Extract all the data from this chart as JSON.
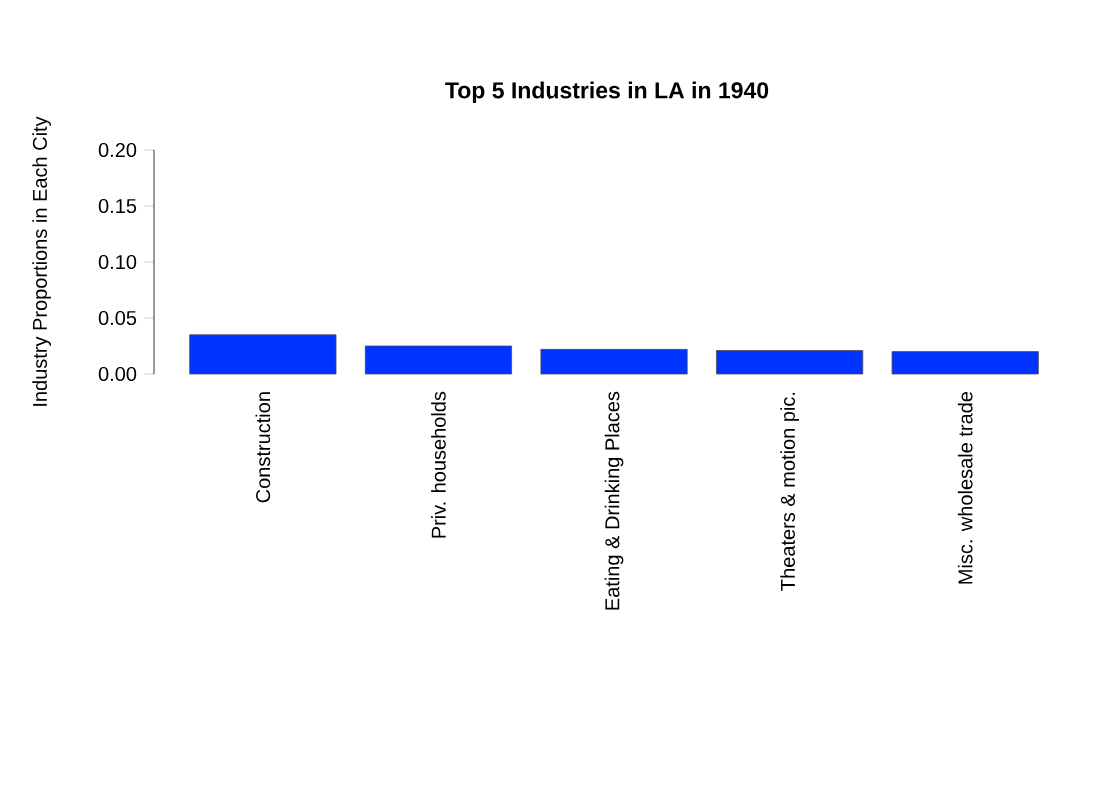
{
  "chart_data": {
    "type": "bar",
    "title": "Top 5 Industries in LA in 1940",
    "ylabel": "Industry Proportions in Each City",
    "categories": [
      "Construction",
      "Priv. households",
      "Eating & Drinking Places",
      "Theaters & motion pic.",
      "Misc. wholesale trade"
    ],
    "values": [
      0.035,
      0.025,
      0.022,
      0.021,
      0.02
    ],
    "color": "#0033ff",
    "ylim": [
      0,
      0.2
    ],
    "yticks": [
      {
        "value": 0,
        "label": "0.00"
      },
      {
        "value": 0.05,
        "label": "0.05"
      },
      {
        "value": 0.1,
        "label": "0.10"
      },
      {
        "value": 0.15,
        "label": "0.15"
      },
      {
        "value": 0.2,
        "label": "0.20"
      }
    ]
  }
}
